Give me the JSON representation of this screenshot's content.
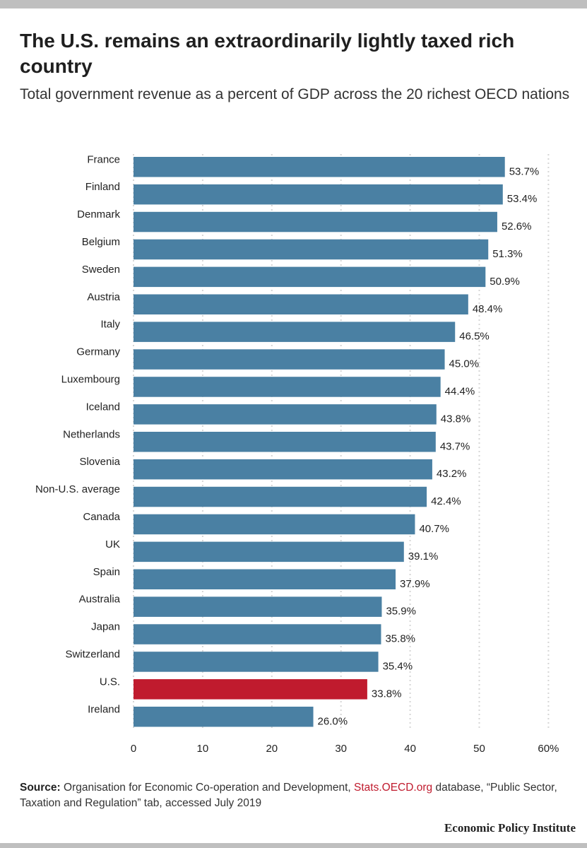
{
  "title": "The U.S. remains an extraordinarily lightly taxed rich country",
  "subtitle": "Total government revenue as a percent of GDP across the 20 richest OECD nations",
  "chart_data": {
    "type": "bar",
    "orientation": "horizontal",
    "categories": [
      "France",
      "Finland",
      "Denmark",
      "Belgium",
      "Sweden",
      "Austria",
      "Italy",
      "Germany",
      "Luxembourg",
      "Iceland",
      "Netherlands",
      "Slovenia",
      "Non-U.S. average",
      "Canada",
      "UK",
      "Spain",
      "Australia",
      "Japan",
      "Switzerland",
      "U.S.",
      "Ireland"
    ],
    "values": [
      53.7,
      53.4,
      52.6,
      51.3,
      50.9,
      48.4,
      46.5,
      45.0,
      44.4,
      43.8,
      43.7,
      43.2,
      42.4,
      40.7,
      39.1,
      37.9,
      35.9,
      35.8,
      35.4,
      33.8,
      26.0
    ],
    "value_labels": [
      "53.7%",
      "53.4%",
      "52.6%",
      "51.3%",
      "50.9%",
      "48.4%",
      "46.5%",
      "45.0%",
      "44.4%",
      "43.8%",
      "43.7%",
      "43.2%",
      "42.4%",
      "40.7%",
      "39.1%",
      "37.9%",
      "35.9%",
      "35.8%",
      "35.4%",
      "33.8%",
      "26.0%"
    ],
    "highlight": "U.S.",
    "xlim": [
      0,
      60
    ],
    "xticks": [
      0,
      10,
      20,
      30,
      40,
      50,
      60
    ],
    "xtick_labels": [
      "0",
      "10",
      "20",
      "30",
      "40",
      "50",
      "60%"
    ],
    "grid": true,
    "colors": {
      "bar": "#4a80a3",
      "highlight": "#c01b2e",
      "grid": "#d6d6d6"
    }
  },
  "source": {
    "label": "Source:",
    "text_before": "Organisation for Economic Co-operation and Development,",
    "link_text": "Stats.OECD.org",
    "text_after": "database, “Public Sector, Taxation and Regulation” tab, accessed July 2019"
  },
  "brand": "Economic Policy Institute"
}
